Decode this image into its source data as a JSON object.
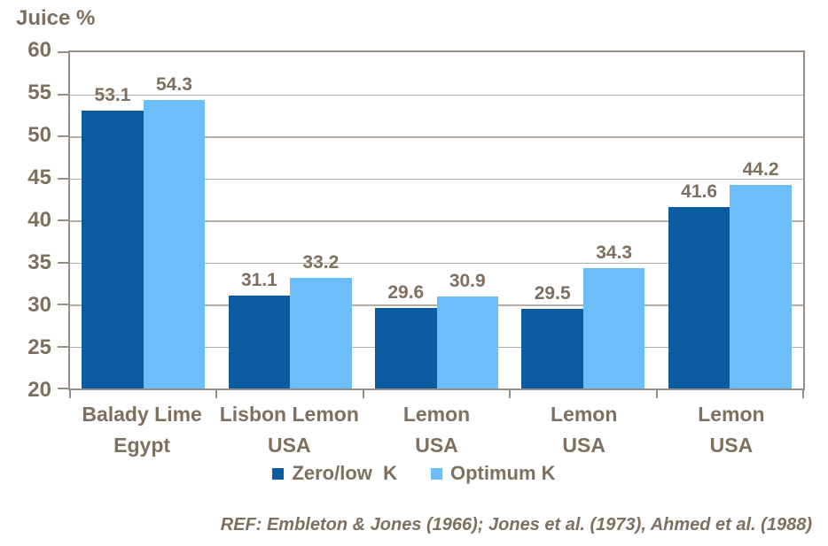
{
  "footer": "REF: Embleton & Jones (1966); Jones et al. (1973), Ahmed et al. (1988)",
  "colors": {
    "text": "#7e6f5f",
    "axis_border": "#978e85",
    "gridline": "#b6ada4",
    "series_zero_low_k": "#0b5ba0",
    "series_optimum_k": "#6cbdf9",
    "background": "#ffffff"
  },
  "chart_data": {
    "type": "bar",
    "title": "Juice %",
    "ylabel": "Juice %",
    "xlabel": "",
    "ylim": [
      20,
      60
    ],
    "ytick_step": 5,
    "yticks": [
      60,
      55,
      50,
      45,
      40,
      35,
      30,
      25,
      20
    ],
    "grid": "horizontal",
    "legend_position": "bottom",
    "data_labels": true,
    "categories": [
      "Balady Lime",
      "Lisbon Lemon",
      "Lemon",
      "Lemon",
      "Lemon"
    ],
    "category_sublabels": [
      "Egypt",
      "USA",
      "USA",
      "USA",
      "USA"
    ],
    "series": [
      {
        "name": "Zero/low  K",
        "color": "#0b5ba0",
        "values": [
          53.1,
          31.1,
          29.6,
          29.5,
          41.6
        ]
      },
      {
        "name": "Optimum K",
        "color": "#6cbdf9",
        "values": [
          54.3,
          33.2,
          30.9,
          34.3,
          44.2
        ]
      }
    ]
  }
}
